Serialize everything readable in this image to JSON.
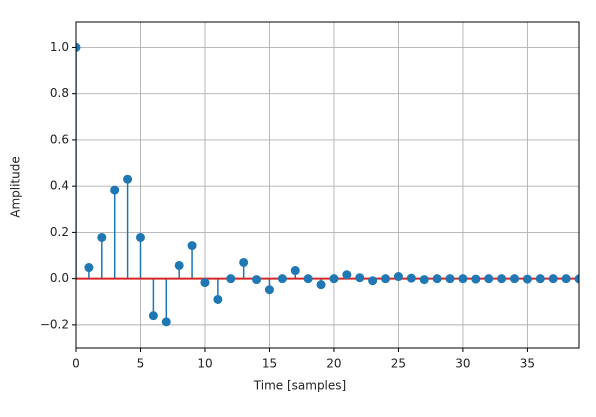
{
  "chart_data": {
    "type": "stem",
    "xlabel": "Time [samples]",
    "ylabel": "Amplitude",
    "x": [
      0,
      1,
      2,
      3,
      4,
      5,
      6,
      7,
      8,
      9,
      10,
      11,
      12,
      13,
      14,
      15,
      16,
      17,
      18,
      19,
      20,
      21,
      22,
      23,
      24,
      25,
      26,
      27,
      28,
      29,
      30,
      31,
      32,
      33,
      34,
      35,
      36,
      37,
      38,
      39
    ],
    "values": [
      1.0,
      0.048,
      0.178,
      0.383,
      0.43,
      0.178,
      -0.16,
      -0.187,
      0.057,
      0.143,
      -0.017,
      -0.09,
      0.0,
      0.07,
      -0.004,
      -0.048,
      0.0,
      0.035,
      0.0,
      -0.026,
      0.0,
      0.017,
      0.004,
      -0.009,
      0.0,
      0.009,
      0.002,
      -0.004,
      0.0,
      0.0,
      0.0,
      -0.002,
      0.0,
      0.0,
      0.0,
      -0.002,
      0.0,
      0.0,
      0.0,
      -0.001
    ],
    "color": "#1f77b4",
    "baseline_color": "#d62728",
    "xlim": [
      0,
      39
    ],
    "ylim": [
      -0.3,
      1.11
    ],
    "xticks": [
      0,
      5,
      10,
      15,
      20,
      25,
      30,
      35
    ],
    "yticks": [
      {
        "value": -0.2,
        "label": "−0.2"
      },
      {
        "value": 0,
        "label": "0.0"
      },
      {
        "value": 0.2,
        "label": "0.2"
      },
      {
        "value": 0.4,
        "label": "0.4"
      },
      {
        "value": 0.6,
        "label": "0.6"
      },
      {
        "value": 0.8,
        "label": "0.8"
      },
      {
        "value": 1.0,
        "label": "1.0"
      }
    ],
    "grid": true
  }
}
